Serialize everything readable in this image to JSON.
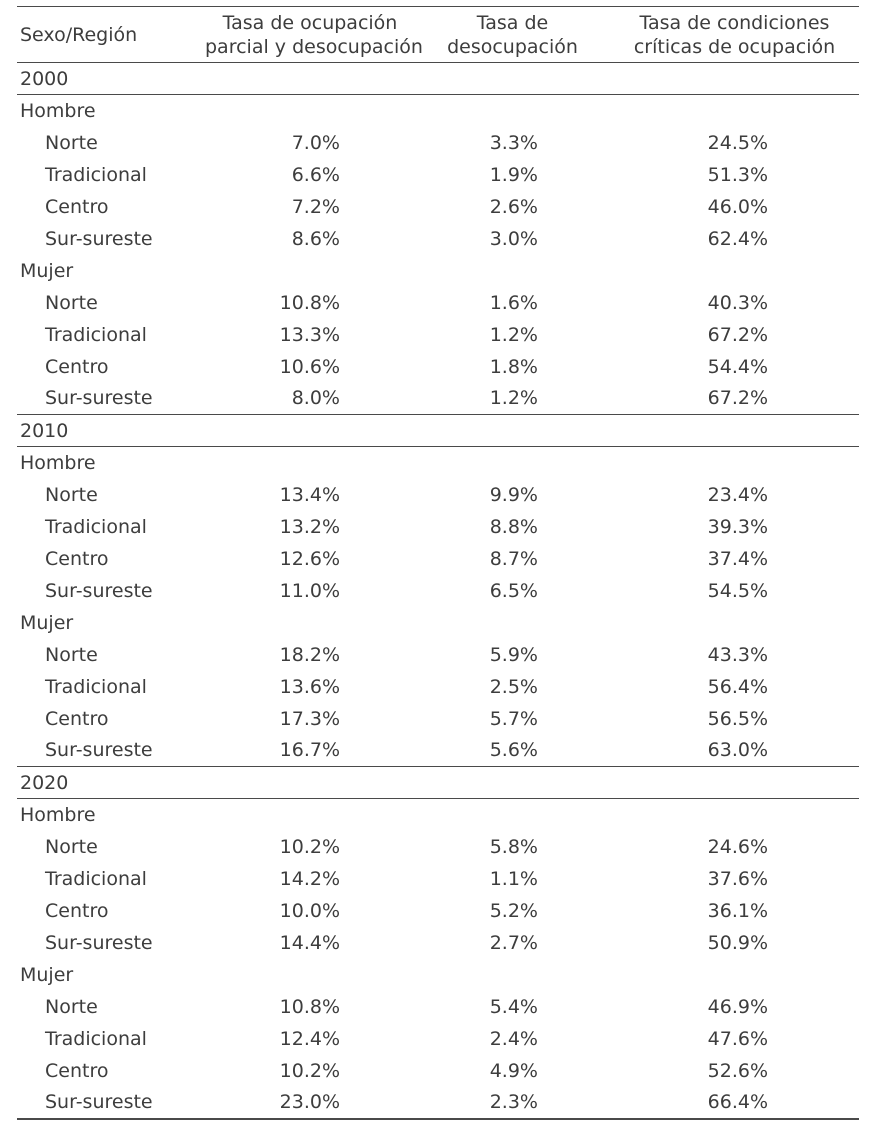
{
  "colors": {
    "background": "#ffffff",
    "text": "#3d3d3d",
    "rule": "#4a4a4a"
  },
  "header": {
    "col1": "Sexo/Región",
    "col2": [
      "Tasa de ocupación",
      "parcial y desocupación"
    ],
    "col3": [
      "Tasa de",
      "desocupación"
    ],
    "col4": [
      "Tasa de condiciones",
      "críticas de ocupación"
    ]
  },
  "chart_data": {
    "type": "table",
    "title": "",
    "columns": [
      "Sexo/Región",
      "Tasa de ocupación parcial y desocupación",
      "Tasa de desocupación",
      "Tasa de condiciones críticas de ocupación"
    ],
    "sections": [
      {
        "year": "2000",
        "groups": [
          {
            "label": "Hombre",
            "rows": [
              {
                "region": "Norte",
                "values": [
                  "7.0%",
                  "3.3%",
                  "24.5%"
                ]
              },
              {
                "region": "Tradicional",
                "values": [
                  "6.6%",
                  "1.9%",
                  "51.3%"
                ]
              },
              {
                "region": "Centro",
                "values": [
                  "7.2%",
                  "2.6%",
                  "46.0%"
                ]
              },
              {
                "region": "Sur-sureste",
                "values": [
                  "8.6%",
                  "3.0%",
                  "62.4%"
                ]
              }
            ]
          },
          {
            "label": "Mujer",
            "rows": [
              {
                "region": "Norte",
                "values": [
                  "10.8%",
                  "1.6%",
                  "40.3%"
                ]
              },
              {
                "region": "Tradicional",
                "values": [
                  "13.3%",
                  "1.2%",
                  "67.2%"
                ]
              },
              {
                "region": "Centro",
                "values": [
                  "10.6%",
                  "1.8%",
                  "54.4%"
                ]
              },
              {
                "region": "Sur-sureste",
                "values": [
                  "8.0%",
                  "1.2%",
                  "67.2%"
                ]
              }
            ]
          }
        ]
      },
      {
        "year": "2010",
        "groups": [
          {
            "label": "Hombre",
            "rows": [
              {
                "region": "Norte",
                "values": [
                  "13.4%",
                  "9.9%",
                  "23.4%"
                ]
              },
              {
                "region": "Tradicional",
                "values": [
                  "13.2%",
                  "8.8%",
                  "39.3%"
                ]
              },
              {
                "region": "Centro",
                "values": [
                  "12.6%",
                  "8.7%",
                  "37.4%"
                ]
              },
              {
                "region": "Sur-sureste",
                "values": [
                  "11.0%",
                  "6.5%",
                  "54.5%"
                ]
              }
            ]
          },
          {
            "label": "Mujer",
            "rows": [
              {
                "region": "Norte",
                "values": [
                  "18.2%",
                  "5.9%",
                  "43.3%"
                ]
              },
              {
                "region": "Tradicional",
                "values": [
                  "13.6%",
                  "2.5%",
                  "56.4%"
                ]
              },
              {
                "region": "Centro",
                "values": [
                  "17.3%",
                  "5.7%",
                  "56.5%"
                ]
              },
              {
                "region": "Sur-sureste",
                "values": [
                  "16.7%",
                  "5.6%",
                  "63.0%"
                ]
              }
            ]
          }
        ]
      },
      {
        "year": "2020",
        "groups": [
          {
            "label": "Hombre",
            "rows": [
              {
                "region": "Norte",
                "values": [
                  "10.2%",
                  "5.8%",
                  "24.6%"
                ]
              },
              {
                "region": "Tradicional",
                "values": [
                  "14.2%",
                  "1.1%",
                  "37.6%"
                ]
              },
              {
                "region": "Centro",
                "values": [
                  "10.0%",
                  "5.2%",
                  "36.1%"
                ]
              },
              {
                "region": "Sur-sureste",
                "values": [
                  "14.4%",
                  "2.7%",
                  "50.9%"
                ]
              }
            ]
          },
          {
            "label": "Mujer",
            "rows": [
              {
                "region": "Norte",
                "values": [
                  "10.8%",
                  "5.4%",
                  "46.9%"
                ]
              },
              {
                "region": "Tradicional",
                "values": [
                  "12.4%",
                  "2.4%",
                  "47.6%"
                ]
              },
              {
                "region": "Centro",
                "values": [
                  "10.2%",
                  "4.9%",
                  "52.6%"
                ]
              },
              {
                "region": "Sur-sureste",
                "values": [
                  "23.0%",
                  "2.3%",
                  "66.4%"
                ]
              }
            ]
          }
        ]
      }
    ]
  }
}
